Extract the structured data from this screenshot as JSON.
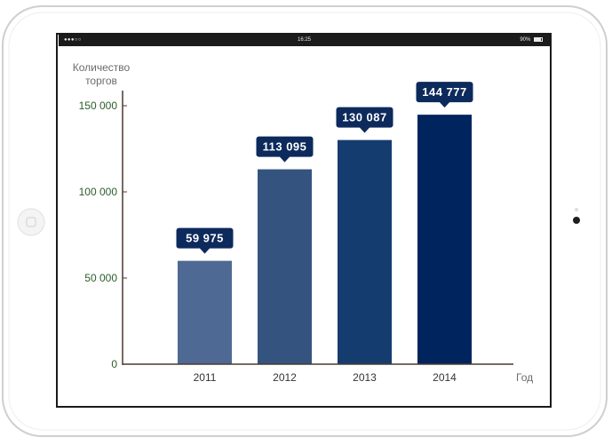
{
  "status_bar": {
    "time": "16:25",
    "battery": "90%",
    "signal": "●●●○○"
  },
  "colors": {
    "bars": [
      "#4e6a94",
      "#34547f",
      "#153c6f",
      "#00245e"
    ],
    "label_bg": "#0d2a5c",
    "axis": "#4a3a2e"
  },
  "chart_data": {
    "type": "bar",
    "categories": [
      "2011",
      "2012",
      "2013",
      "2014"
    ],
    "values": [
      59975,
      113095,
      130087,
      144777
    ],
    "value_labels": [
      "59 975",
      "113 095",
      "130 087",
      "144 777"
    ],
    "ylabel": [
      "Количество",
      "торгов"
    ],
    "xlabel": "Год",
    "yticks": [
      {
        "value": 0,
        "label": "0"
      },
      {
        "value": 50000,
        "label": "50 000"
      },
      {
        "value": 100000,
        "label": "100 000"
      },
      {
        "value": 150000,
        "label": "150 000"
      }
    ],
    "ylim": [
      0,
      150000
    ],
    "grid": false
  }
}
